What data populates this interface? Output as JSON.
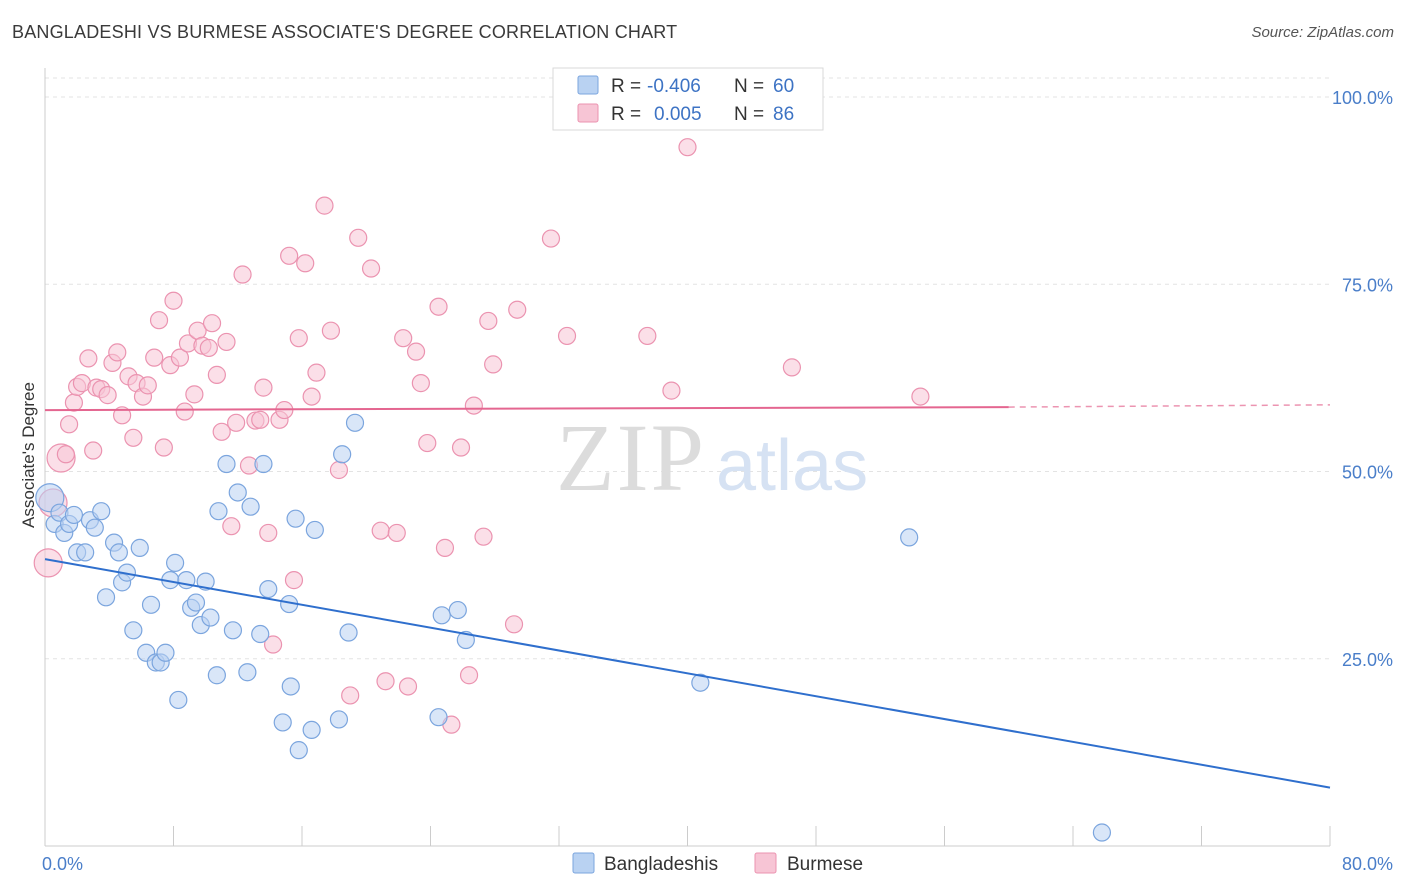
{
  "title": "BANGLADESHI VS BURMESE ASSOCIATE'S DEGREE CORRELATION CHART",
  "source": "Source: ZipAtlas.com",
  "watermark": {
    "zip": "ZIP",
    "atlas": "atlas"
  },
  "colors": {
    "blue_fill": "#b9d2f2",
    "blue_stroke": "#7ba5de",
    "blue_line": "#2f6fcd",
    "pink_fill": "#f7c5d5",
    "pink_stroke": "#eb93b0",
    "pink_line": "#e46690",
    "label": "#4a7ec9"
  },
  "legend": {
    "rows": [
      {
        "r_label": "R =",
        "r_value": "-0.406",
        "n_label": "N =",
        "n_value": "60",
        "series": "blue"
      },
      {
        "r_label": "R =",
        "r_value": "0.005",
        "n_label": "N =",
        "n_value": "86",
        "series": "pink"
      }
    ]
  },
  "bottom_legend": [
    {
      "label": "Bangladeshis",
      "series": "blue"
    },
    {
      "label": "Burmese",
      "series": "pink"
    }
  ],
  "chart_data": {
    "type": "scatter",
    "title": "BANGLADESHI VS BURMESE ASSOCIATE'S DEGREE CORRELATION CHART",
    "xlabel": "",
    "ylabel": "Associate's Degree",
    "xlim": [
      0,
      80
    ],
    "ylim": [
      0,
      100
    ],
    "x_tick_labels": [
      "0.0%",
      "80.0%"
    ],
    "y_ticks": [
      25,
      50,
      75,
      100
    ],
    "y_tick_labels": [
      "25.0%",
      "50.0%",
      "75.0%",
      "100.0%"
    ],
    "grid": true,
    "legend_position": "top-center",
    "series": [
      {
        "name": "Bangladeshis",
        "r": -0.406,
        "n": 60,
        "trend": {
          "x": [
            0,
            80
          ],
          "y": [
            38.3,
            7.8
          ]
        },
        "points": [
          {
            "x": 0.3,
            "y": 46.5,
            "big": true
          },
          {
            "x": 0.6,
            "y": 43
          },
          {
            "x": 0.9,
            "y": 44.5
          },
          {
            "x": 1.2,
            "y": 41.8
          },
          {
            "x": 1.5,
            "y": 43
          },
          {
            "x": 1.8,
            "y": 44.2
          },
          {
            "x": 2.0,
            "y": 39.2
          },
          {
            "x": 2.5,
            "y": 39.2
          },
          {
            "x": 2.8,
            "y": 43.5
          },
          {
            "x": 3.1,
            "y": 42.5
          },
          {
            "x": 3.5,
            "y": 44.7
          },
          {
            "x": 3.8,
            "y": 33.2
          },
          {
            "x": 4.3,
            "y": 40.5
          },
          {
            "x": 4.6,
            "y": 39.2
          },
          {
            "x": 4.8,
            "y": 35.2
          },
          {
            "x": 5.1,
            "y": 36.5
          },
          {
            "x": 5.5,
            "y": 28.8
          },
          {
            "x": 5.9,
            "y": 39.8
          },
          {
            "x": 6.3,
            "y": 25.8
          },
          {
            "x": 6.6,
            "y": 32.2
          },
          {
            "x": 6.9,
            "y": 24.5
          },
          {
            "x": 7.2,
            "y": 24.5
          },
          {
            "x": 7.5,
            "y": 25.8
          },
          {
            "x": 7.8,
            "y": 35.5
          },
          {
            "x": 8.1,
            "y": 37.8
          },
          {
            "x": 8.3,
            "y": 19.5
          },
          {
            "x": 8.8,
            "y": 35.5
          },
          {
            "x": 9.1,
            "y": 31.8
          },
          {
            "x": 9.4,
            "y": 32.5
          },
          {
            "x": 9.7,
            "y": 29.5
          },
          {
            "x": 10.0,
            "y": 35.3
          },
          {
            "x": 10.3,
            "y": 30.5
          },
          {
            "x": 10.7,
            "y": 22.8
          },
          {
            "x": 10.8,
            "y": 44.7
          },
          {
            "x": 11.3,
            "y": 51
          },
          {
            "x": 11.7,
            "y": 28.8
          },
          {
            "x": 12.0,
            "y": 47.2
          },
          {
            "x": 12.6,
            "y": 23.2
          },
          {
            "x": 12.8,
            "y": 45.3
          },
          {
            "x": 13.4,
            "y": 28.3
          },
          {
            "x": 13.6,
            "y": 51
          },
          {
            "x": 13.9,
            "y": 34.3
          },
          {
            "x": 14.8,
            "y": 16.5
          },
          {
            "x": 15.2,
            "y": 32.3
          },
          {
            "x": 15.3,
            "y": 21.3
          },
          {
            "x": 15.6,
            "y": 43.7
          },
          {
            "x": 15.8,
            "y": 12.8
          },
          {
            "x": 16.6,
            "y": 15.5
          },
          {
            "x": 16.8,
            "y": 42.2
          },
          {
            "x": 18.3,
            "y": 16.9
          },
          {
            "x": 18.5,
            "y": 52.3
          },
          {
            "x": 18.9,
            "y": 28.5
          },
          {
            "x": 19.3,
            "y": 56.5
          },
          {
            "x": 24.5,
            "y": 17.2
          },
          {
            "x": 24.7,
            "y": 30.8
          },
          {
            "x": 25.7,
            "y": 31.5
          },
          {
            "x": 26.2,
            "y": 27.5
          },
          {
            "x": 40.8,
            "y": 21.8
          },
          {
            "x": 53.8,
            "y": 41.2
          },
          {
            "x": 65.8,
            "y": 1.8
          }
        ]
      },
      {
        "name": "Burmese",
        "r": 0.005,
        "n": 86,
        "trend": {
          "x": [
            0,
            60
          ],
          "y": [
            58.2,
            58.6
          ]
        },
        "trend_dashed": {
          "x": [
            60,
            80
          ],
          "y": [
            58.6,
            58.9
          ]
        },
        "points": [
          {
            "x": 0.2,
            "y": 37.8,
            "big": true
          },
          {
            "x": 0.5,
            "y": 45.8,
            "big": true
          },
          {
            "x": 1.0,
            "y": 51.8,
            "big": true
          },
          {
            "x": 1.3,
            "y": 52.3
          },
          {
            "x": 1.5,
            "y": 56.3
          },
          {
            "x": 1.8,
            "y": 59.2
          },
          {
            "x": 2.0,
            "y": 61.3
          },
          {
            "x": 2.3,
            "y": 61.8
          },
          {
            "x": 2.7,
            "y": 65.1
          },
          {
            "x": 3.0,
            "y": 52.8
          },
          {
            "x": 3.2,
            "y": 61.2
          },
          {
            "x": 3.5,
            "y": 61
          },
          {
            "x": 3.9,
            "y": 60.2
          },
          {
            "x": 4.2,
            "y": 64.5
          },
          {
            "x": 4.5,
            "y": 65.9
          },
          {
            "x": 4.8,
            "y": 57.5
          },
          {
            "x": 5.2,
            "y": 62.7
          },
          {
            "x": 5.5,
            "y": 54.5
          },
          {
            "x": 5.7,
            "y": 61.8
          },
          {
            "x": 6.1,
            "y": 60
          },
          {
            "x": 6.4,
            "y": 61.5
          },
          {
            "x": 6.8,
            "y": 65.2
          },
          {
            "x": 7.1,
            "y": 70.2
          },
          {
            "x": 7.4,
            "y": 53.2
          },
          {
            "x": 7.8,
            "y": 64.2
          },
          {
            "x": 8.0,
            "y": 72.8
          },
          {
            "x": 8.4,
            "y": 65.2
          },
          {
            "x": 8.7,
            "y": 58
          },
          {
            "x": 8.9,
            "y": 67.1
          },
          {
            "x": 9.3,
            "y": 60.3
          },
          {
            "x": 9.5,
            "y": 68.8
          },
          {
            "x": 9.8,
            "y": 66.8
          },
          {
            "x": 10.2,
            "y": 66.5
          },
          {
            "x": 10.4,
            "y": 69.8
          },
          {
            "x": 10.7,
            "y": 62.9
          },
          {
            "x": 11.0,
            "y": 55.3
          },
          {
            "x": 11.3,
            "y": 67.3
          },
          {
            "x": 11.6,
            "y": 42.7
          },
          {
            "x": 11.9,
            "y": 56.5
          },
          {
            "x": 12.3,
            "y": 76.3
          },
          {
            "x": 12.7,
            "y": 50.8
          },
          {
            "x": 13.1,
            "y": 56.8
          },
          {
            "x": 13.4,
            "y": 56.9
          },
          {
            "x": 13.6,
            "y": 61.2
          },
          {
            "x": 13.9,
            "y": 41.8
          },
          {
            "x": 14.2,
            "y": 26.9
          },
          {
            "x": 14.6,
            "y": 56.9
          },
          {
            "x": 14.9,
            "y": 58.2
          },
          {
            "x": 15.2,
            "y": 78.8
          },
          {
            "x": 15.5,
            "y": 35.5
          },
          {
            "x": 15.8,
            "y": 67.8
          },
          {
            "x": 16.2,
            "y": 77.8
          },
          {
            "x": 16.6,
            "y": 60
          },
          {
            "x": 16.9,
            "y": 63.2
          },
          {
            "x": 17.4,
            "y": 85.5
          },
          {
            "x": 17.8,
            "y": 68.8
          },
          {
            "x": 18.3,
            "y": 50.2
          },
          {
            "x": 19.0,
            "y": 20.1
          },
          {
            "x": 19.5,
            "y": 81.2
          },
          {
            "x": 20.3,
            "y": 77.1
          },
          {
            "x": 20.9,
            "y": 42.1
          },
          {
            "x": 21.2,
            "y": 22
          },
          {
            "x": 21.9,
            "y": 41.8
          },
          {
            "x": 22.3,
            "y": 67.8
          },
          {
            "x": 22.6,
            "y": 21.3
          },
          {
            "x": 23.1,
            "y": 66
          },
          {
            "x": 23.4,
            "y": 61.8
          },
          {
            "x": 23.8,
            "y": 53.8
          },
          {
            "x": 24.5,
            "y": 72
          },
          {
            "x": 24.9,
            "y": 39.8
          },
          {
            "x": 25.3,
            "y": 16.2
          },
          {
            "x": 25.9,
            "y": 53.2
          },
          {
            "x": 26.4,
            "y": 22.8
          },
          {
            "x": 26.7,
            "y": 58.8
          },
          {
            "x": 27.3,
            "y": 41.3
          },
          {
            "x": 27.6,
            "y": 70.1
          },
          {
            "x": 27.9,
            "y": 64.3
          },
          {
            "x": 29.2,
            "y": 29.6
          },
          {
            "x": 29.4,
            "y": 71.6
          },
          {
            "x": 31.5,
            "y": 81.1
          },
          {
            "x": 32.5,
            "y": 68.1
          },
          {
            "x": 37.5,
            "y": 68.1
          },
          {
            "x": 39.0,
            "y": 60.8
          },
          {
            "x": 40.0,
            "y": 93.3
          },
          {
            "x": 46.5,
            "y": 63.9
          },
          {
            "x": 54.5,
            "y": 60
          }
        ]
      }
    ]
  }
}
